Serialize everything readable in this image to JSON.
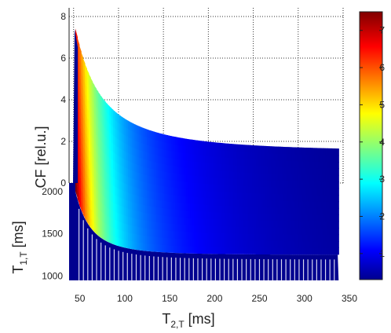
{
  "chart_data": {
    "type": "surface",
    "xlabel": {
      "main": "T",
      "sub": "2,T",
      "unit": " [ms]"
    },
    "ylabel": {
      "main": "T",
      "sub": "1,T",
      "unit": " [ms]"
    },
    "zlabel": "CF [rel.u.]",
    "x_ticks": [
      50,
      100,
      150,
      200,
      250,
      300,
      350
    ],
    "y_ticks": [
      1000,
      1500,
      2000
    ],
    "z_ticks": [
      0,
      2,
      4,
      6,
      8
    ],
    "colorbar_ticks": [
      1,
      2,
      3,
      4,
      5,
      6,
      7
    ],
    "xlim": [
      45,
      350
    ],
    "ylim": [
      950,
      2100
    ],
    "zlim": [
      0,
      8
    ],
    "colorbar_range": [
      0.3,
      7.5
    ],
    "colormap": "jet",
    "grid": true,
    "surface": {
      "t2_range": [
        52,
        345
      ],
      "front_edge_t1": 1250,
      "back_edge_t1": 2100,
      "peak_cf": 7.2,
      "peak_t2": 52,
      "cf_at_t2_max_back": 1.5
    }
  }
}
